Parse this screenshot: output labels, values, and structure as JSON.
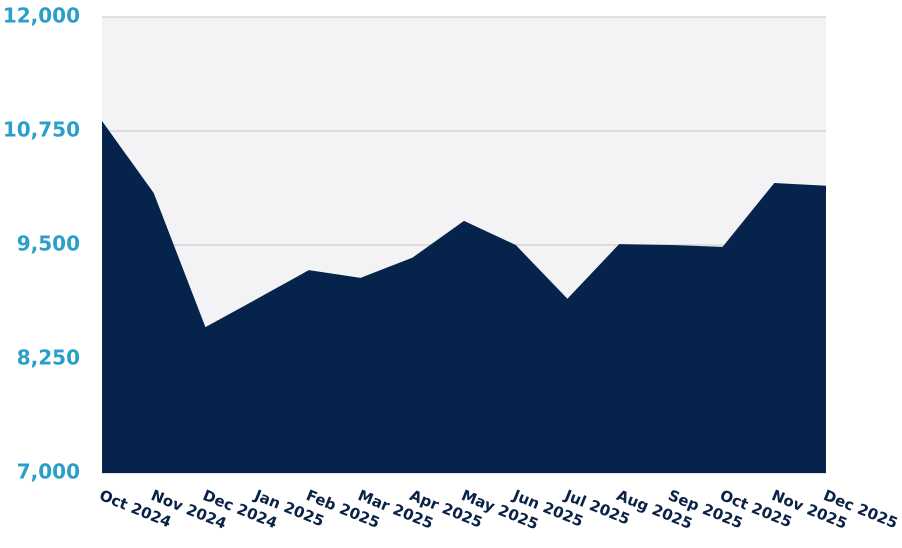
{
  "chart_data": {
    "type": "area",
    "categories": [
      "Oct 2024",
      "Nov 2024",
      "Dec 2024",
      "Jan 2025",
      "Feb 2025",
      "Mar 2025",
      "Apr 2025",
      "May 2025",
      "Jun 2025",
      "Jul 2025",
      "Aug 2025",
      "Sep 2025",
      "Oct 2025",
      "Nov 2025",
      "Dec 2025"
    ],
    "series": [
      {
        "color": "#05234b",
        "values": [
          10860,
          10070,
          8600,
          8910,
          9225,
          9140,
          9360,
          9765,
          9500,
          8910,
          9510,
          9500,
          9480,
          10180,
          10150
        ]
      }
    ],
    "ylim": [
      7000,
      12000
    ],
    "yticks": [
      {
        "value": 7000,
        "label": "7,000"
      },
      {
        "value": 8250,
        "label": "8,250"
      },
      {
        "value": 9500,
        "label": "9,500"
      },
      {
        "value": 10750,
        "label": "10,750"
      },
      {
        "value": 12000,
        "label": "12,000"
      }
    ],
    "grid": true
  }
}
